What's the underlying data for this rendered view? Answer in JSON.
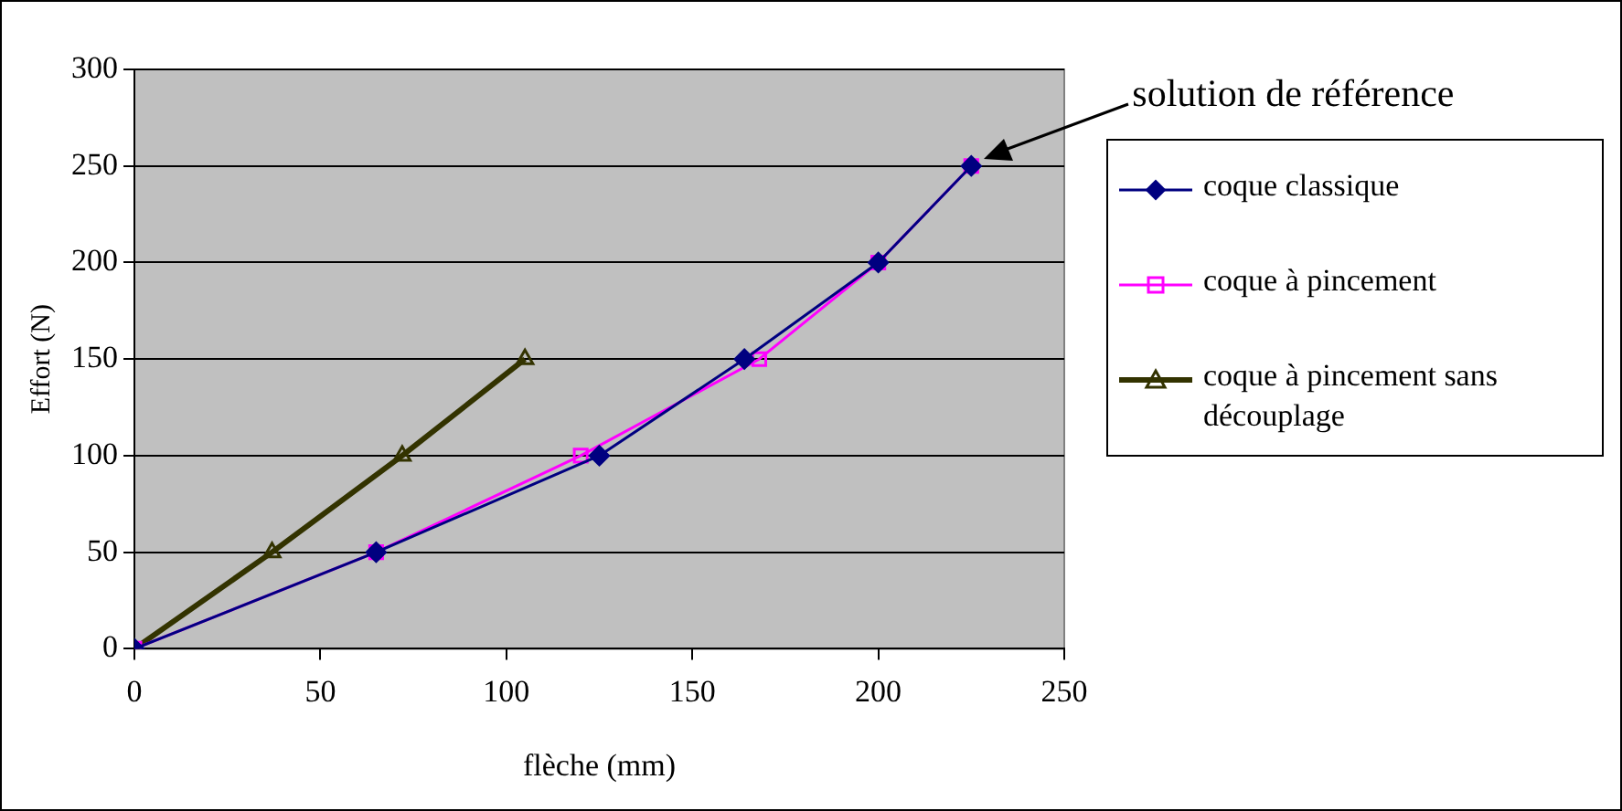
{
  "chart_data": {
    "type": "line",
    "xlabel": "flèche (mm)",
    "ylabel": "Effort (N)",
    "xlim": [
      0,
      250
    ],
    "xticks": [
      0,
      50,
      100,
      150,
      200,
      250
    ],
    "ylim": [
      0,
      300
    ],
    "yticks": [
      0,
      50,
      100,
      150,
      200,
      250,
      300
    ],
    "grid": "y",
    "legend": "right",
    "line_style": "solid",
    "annotations": [
      "solution de référence"
    ],
    "series": [
      {
        "name": "coque classique",
        "color": "#000080",
        "marker": "diamond",
        "x": [
          0,
          65,
          125,
          164,
          200,
          225
        ],
        "values": [
          0,
          50,
          100,
          150,
          200,
          250
        ]
      },
      {
        "name": "coque à pincement",
        "color": "#ff00ff",
        "marker": "square",
        "x": [
          0,
          65,
          120,
          168,
          200,
          225
        ],
        "values": [
          0,
          50,
          100,
          150,
          200,
          250
        ]
      },
      {
        "name": "coque à pincement sans découplage",
        "color": "#333300",
        "marker": "triangle",
        "x": [
          0,
          37,
          72,
          105
        ],
        "values": [
          0,
          50,
          100,
          150
        ]
      }
    ]
  }
}
